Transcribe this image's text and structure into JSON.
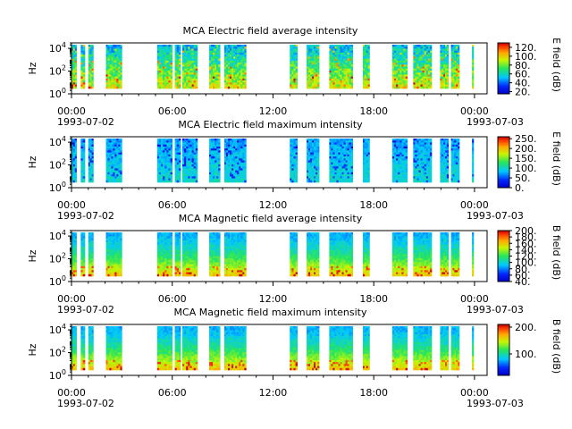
{
  "chart_data": [
    {
      "type": "heatmap",
      "title": "MCA  Electric field average intensity",
      "ylabel": "Hz",
      "y_ticks": [
        "10^0",
        "10^2",
        "10^4"
      ],
      "ylim": [
        1,
        30000
      ],
      "y_scale": "log",
      "x_ticks": [
        "00:00",
        "06:00",
        "12:00",
        "18:00",
        "00:00"
      ],
      "x_date_labels": [
        "1993-07-02",
        "1993-07-03"
      ],
      "xlim": [
        "1993-07-02T00:00",
        "1993-07-03T00:45"
      ],
      "colorbar": {
        "label": "E field (dB)",
        "range": [
          15,
          130
        ],
        "ticks": [
          {
            "value": 20,
            "label": "20."
          },
          {
            "value": 40,
            "label": "40."
          },
          {
            "value": 60,
            "label": "60."
          },
          {
            "value": 80,
            "label": "80."
          },
          {
            "value": 100,
            "label": "100."
          },
          {
            "value": 120,
            "label": "120."
          }
        ]
      },
      "style": "average"
    },
    {
      "type": "heatmap",
      "title": "MCA  Electric field maximum intensity",
      "ylabel": "Hz",
      "y_ticks": [
        "10^0",
        "10^2",
        "10^4"
      ],
      "ylim": [
        1,
        30000
      ],
      "y_scale": "log",
      "x_ticks": [
        "00:00",
        "06:00",
        "12:00",
        "18:00",
        "00:00"
      ],
      "x_date_labels": [
        "1993-07-02",
        "1993-07-03"
      ],
      "xlim": [
        "1993-07-02T00:00",
        "1993-07-03T00:45"
      ],
      "colorbar": {
        "label": "E field (dB)",
        "range": [
          0,
          260
        ],
        "ticks": [
          {
            "value": 0,
            "label": "0."
          },
          {
            "value": 50,
            "label": "50."
          },
          {
            "value": 100,
            "label": "100."
          },
          {
            "value": 150,
            "label": "150."
          },
          {
            "value": 200,
            "label": "200."
          },
          {
            "value": 250,
            "label": "250."
          }
        ]
      },
      "style": "emax"
    },
    {
      "type": "heatmap",
      "title": "MCA  Magnetic field average intensity",
      "ylabel": "Hz",
      "y_ticks": [
        "10^0",
        "10^2",
        "10^4"
      ],
      "ylim": [
        1,
        30000
      ],
      "y_scale": "log",
      "x_ticks": [
        "00:00",
        "06:00",
        "12:00",
        "18:00",
        "00:00"
      ],
      "x_date_labels": [
        "1993-07-02",
        "1993-07-03"
      ],
      "xlim": [
        "1993-07-02T00:00",
        "1993-07-03T00:45"
      ],
      "colorbar": {
        "label": "B field (dB)",
        "range": [
          40,
          200
        ],
        "ticks": [
          {
            "value": 40,
            "label": "40."
          },
          {
            "value": 60,
            "label": "60."
          },
          {
            "value": 80,
            "label": "80."
          },
          {
            "value": 100,
            "label": "100."
          },
          {
            "value": 120,
            "label": "120."
          },
          {
            "value": 140,
            "label": "140."
          },
          {
            "value": 160,
            "label": "160."
          },
          {
            "value": 180,
            "label": "180."
          },
          {
            "value": 200,
            "label": "200."
          }
        ]
      },
      "style": "magnetic"
    },
    {
      "type": "heatmap",
      "title": "MCA  Magnetic field maximum intensity",
      "ylabel": "Hz",
      "y_ticks": [
        "10^0",
        "10^2",
        "10^4"
      ],
      "ylim": [
        1,
        30000
      ],
      "y_scale": "log",
      "x_ticks": [
        "00:00",
        "06:00",
        "12:00",
        "18:00",
        "00:00"
      ],
      "x_date_labels": [
        "1993-07-02",
        "1993-07-03"
      ],
      "xlim": [
        "1993-07-02T00:00",
        "1993-07-03T00:45"
      ],
      "colorbar": {
        "label": "B field (dB)",
        "range": [
          20,
          210
        ],
        "ticks": [
          {
            "value": 100,
            "label": "100."
          },
          {
            "value": 200,
            "label": "200."
          }
        ]
      },
      "style": "magnetic"
    }
  ],
  "data_segments_hours": [
    [
      0.0,
      0.3
    ],
    [
      0.55,
      0.8
    ],
    [
      1.0,
      1.3
    ],
    [
      2.05,
      3.0
    ],
    [
      5.1,
      6.0
    ],
    [
      6.15,
      6.5
    ],
    [
      6.6,
      7.5
    ],
    [
      8.2,
      8.85
    ],
    [
      9.1,
      10.4
    ],
    [
      13.0,
      13.45
    ],
    [
      14.0,
      14.75
    ],
    [
      15.35,
      16.75
    ],
    [
      17.35,
      17.75
    ],
    [
      19.1,
      20.0
    ],
    [
      20.35,
      21.45
    ],
    [
      21.95,
      22.45
    ],
    [
      22.6,
      23.1
    ],
    [
      23.85,
      23.95
    ]
  ]
}
